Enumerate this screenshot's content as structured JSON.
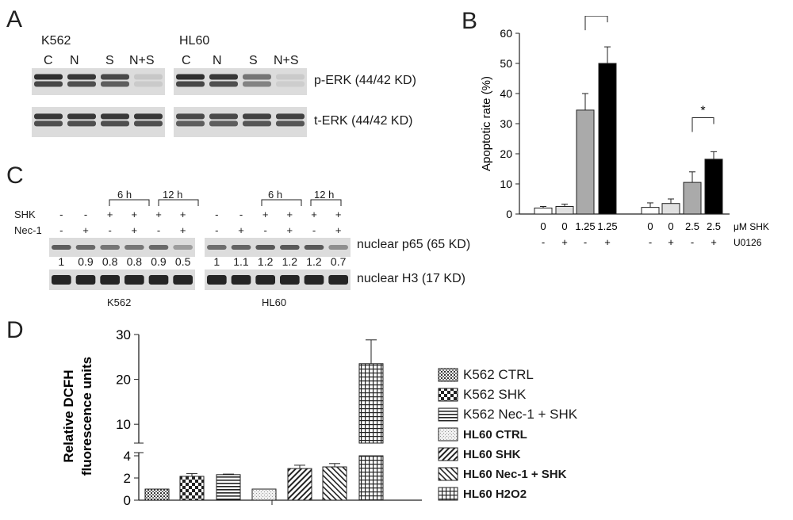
{
  "panels": {
    "a": "A",
    "b": "B",
    "c": "C",
    "d": "D"
  },
  "panel_a": {
    "k562_title": "K562",
    "hl60_title": "HL60",
    "lanes": [
      "C",
      "N",
      "S",
      "N+S"
    ],
    "blot_labels": [
      "p-ERK (44/42 KD)",
      "t-ERK (44/42 KD)"
    ],
    "perk_k562": [
      1.0,
      0.95,
      0.85,
      0.12
    ],
    "perk_hl60": [
      1.0,
      0.95,
      0.6,
      0.1
    ]
  },
  "panel_c": {
    "time_labels": [
      "6 h",
      "12 h"
    ],
    "row_labels": [
      "SHK",
      "Nec-1"
    ],
    "shk_row": [
      "-",
      "-",
      "+",
      "+",
      "+",
      "+"
    ],
    "nec_row": [
      "-",
      "+",
      "-",
      "+",
      "-",
      "+"
    ],
    "k562_values": [
      "1",
      "0.9",
      "0.8",
      "0.8",
      "0.9",
      "0.5"
    ],
    "hl60_values": [
      "1",
      "1.1",
      "1.2",
      "1.2",
      "1.2",
      "0.7"
    ],
    "blot_labels": [
      "nuclear p65 (65 KD)",
      "nuclear H3 (17 KD)"
    ],
    "cell_labels": [
      "K562",
      "HL60"
    ]
  },
  "chart_data": [
    {
      "type": "bar",
      "panel": "B",
      "ylabel": "Apoptotic rate (%)",
      "ylim": [
        0,
        60
      ],
      "yticks": [
        "0",
        "10",
        "20",
        "30",
        "40",
        "50",
        "60"
      ],
      "x_row1_label": "μM SHK",
      "x_row2_label": "U0126",
      "categories_shk": [
        "0",
        "0",
        "1.25",
        "1.25",
        "0",
        "0",
        "2.5",
        "2.5"
      ],
      "categories_u0126": [
        "-",
        "+",
        "-",
        "+",
        "-",
        "+",
        "-",
        "+"
      ],
      "values": [
        2,
        2.5,
        34.5,
        50,
        2.2,
        3.5,
        10.5,
        18.2
      ],
      "errors": [
        0.5,
        0.8,
        5.5,
        5.5,
        1.5,
        1.5,
        3.5,
        2.5
      ],
      "fills": [
        "#ffffff",
        "#e0e0e0",
        "#aaaaaa",
        "#000000",
        "#ffffff",
        "#e0e0e0",
        "#aaaaaa",
        "#000000"
      ],
      "significance": [
        "*",
        "*"
      ]
    },
    {
      "type": "bar",
      "panel": "D",
      "ylabel": "Relative DCFH fluorescence units",
      "ylabel_lines": [
        "Relative DCFH",
        "fluorescence units"
      ],
      "axis_break": true,
      "yticks_lower": [
        "0",
        "2",
        "4"
      ],
      "yticks_upper": [
        "10",
        "20",
        "30"
      ],
      "series": [
        {
          "name": "K562 CTRL",
          "value": 1.0,
          "error": 0.0
        },
        {
          "name": "K562 SHK",
          "value": 2.15,
          "error": 0.25
        },
        {
          "name": "K562 Nec-1 + SHK",
          "value": 2.3,
          "error": 0.05
        },
        {
          "name": "HL60 CTRL",
          "value": 1.0,
          "error": 0.0
        },
        {
          "name": "HL60 SHK",
          "value": 2.85,
          "error": 0.3
        },
        {
          "name": "HL60 Nec-1 + SHK",
          "value": 3.0,
          "error": 0.3
        },
        {
          "name": "HL60 H2O2",
          "value": 23.5,
          "error": 5.3
        }
      ],
      "legend_bold": [
        false,
        false,
        false,
        true,
        true,
        true,
        true
      ]
    }
  ]
}
